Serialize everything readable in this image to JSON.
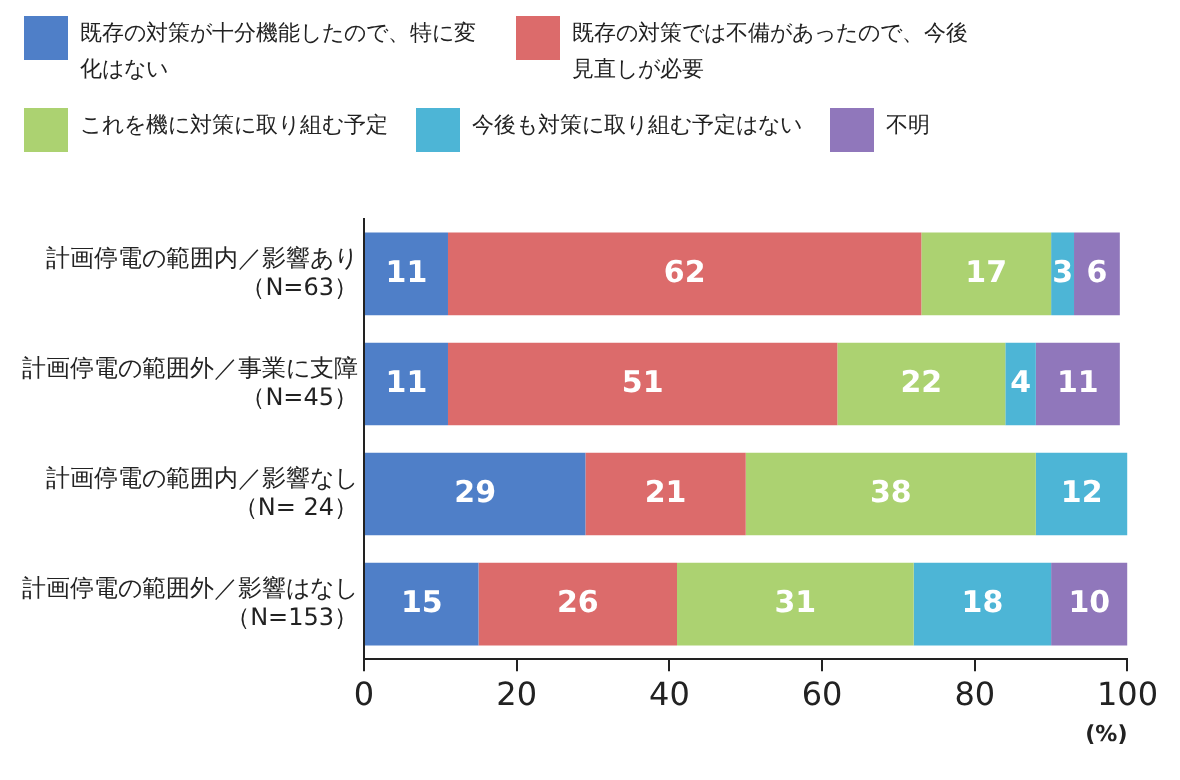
{
  "chart_data": {
    "type": "bar",
    "orientation": "horizontal",
    "stacked": true,
    "data_labels": true,
    "legend": "top",
    "grid": false,
    "xlabel": "(%)",
    "categories": [
      "計画停電の範囲内／影響あり（N=63）",
      "計画停電の範囲外／事業に支障（N=45）",
      "計画停電の範囲内／影響なし（N= 24）",
      "計画停電の範囲外／影響はなし（N=153）"
    ],
    "series": [
      {
        "name": "既存の対策が十分機能したので、特に変化はない",
        "color": "#4f7fc8",
        "values": [
          11,
          11,
          29,
          15
        ]
      },
      {
        "name": "既存の対策では不備があったので、今後見直しが必要",
        "color": "#dc6b6b",
        "values": [
          62,
          51,
          21,
          26
        ]
      },
      {
        "name": "これを機に対策に取り組む予定",
        "color": "#acd271",
        "values": [
          17,
          22,
          38,
          31
        ]
      },
      {
        "name": "今後も対策に取り組む予定はない",
        "color": "#4db5d6",
        "values": [
          3,
          4,
          12,
          18
        ]
      },
      {
        "name": "不明",
        "color": "#9077bb",
        "values": [
          6,
          11,
          null,
          10
        ]
      }
    ],
    "xlim": [
      0,
      100
    ],
    "xticks": [
      0,
      20,
      40,
      60,
      80,
      100
    ]
  }
}
